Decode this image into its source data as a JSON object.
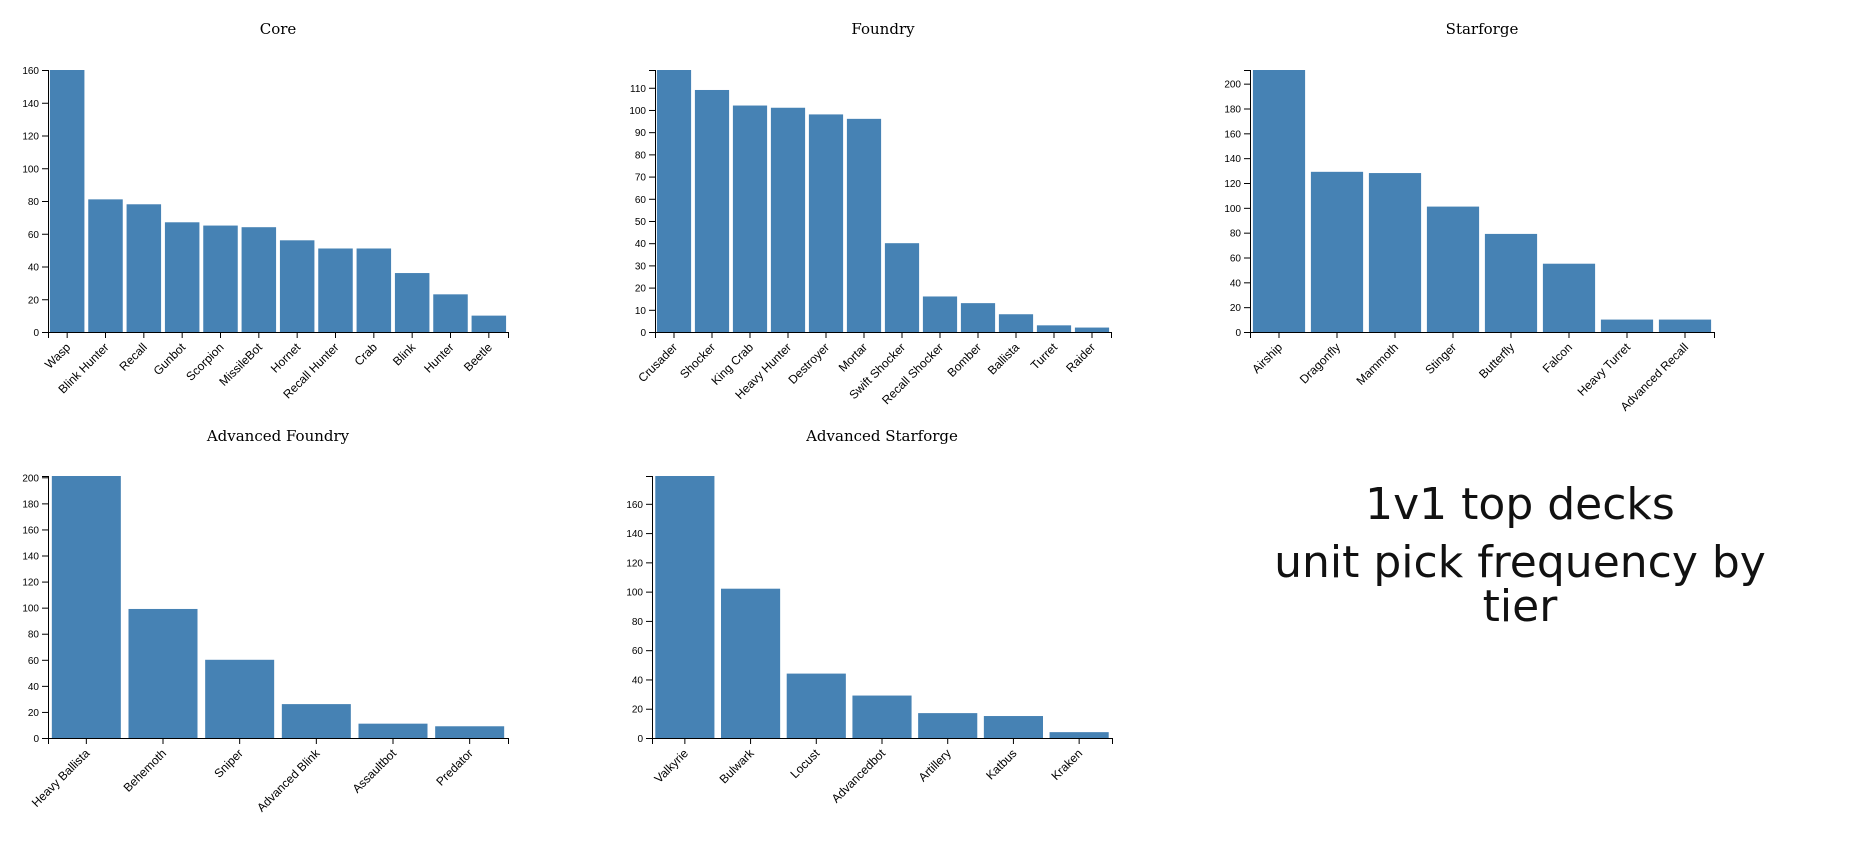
{
  "headline": {
    "line1": "1v1 top decks",
    "line2": "unit pick frequency by tier"
  },
  "style": {
    "bar_color": "#4682b4"
  },
  "chart_data": [
    {
      "type": "bar",
      "title": "Core",
      "categories": [
        "Wasp",
        "Blink Hunter",
        "Recall",
        "Gunbot",
        "Scorpion",
        "MissileBot",
        "Hornet",
        "Recall Hunter",
        "Crab",
        "Blink",
        "Hunter",
        "Beetle"
      ],
      "values": [
        160,
        81,
        78,
        67,
        65,
        64,
        56,
        51,
        51,
        36,
        23,
        10
      ],
      "ylim": [
        0,
        160
      ],
      "yticks": [
        0,
        20,
        40,
        60,
        80,
        100,
        120,
        140,
        160
      ],
      "xlabel": "",
      "ylabel": ""
    },
    {
      "type": "bar",
      "title": "Foundry",
      "categories": [
        "Crusader",
        "Shocker",
        "King Crab",
        "Heavy Hunter",
        "Destroyer",
        "Mortar",
        "Swift Shocker",
        "Recall Shocker",
        "Bomber",
        "Ballista",
        "Turret",
        "Raider"
      ],
      "values": [
        118,
        109,
        102,
        101,
        98,
        96,
        40,
        16,
        13,
        8,
        3,
        2
      ],
      "ylim": [
        0,
        118
      ],
      "yticks": [
        0,
        10,
        20,
        30,
        40,
        50,
        60,
        70,
        80,
        90,
        100,
        110
      ],
      "xlabel": "",
      "ylabel": ""
    },
    {
      "type": "bar",
      "title": "Starforge",
      "categories": [
        "Airship",
        "Dragonfly",
        "Mammoth",
        "Stinger",
        "Butterfly",
        "Falcon",
        "Heavy Turret",
        "Advanced Recall"
      ],
      "values": [
        211,
        129,
        128,
        101,
        79,
        55,
        10,
        10
      ],
      "ylim": [
        0,
        211
      ],
      "yticks": [
        0,
        20,
        40,
        60,
        80,
        100,
        120,
        140,
        160,
        180,
        200
      ],
      "xlabel": "",
      "ylabel": ""
    },
    {
      "type": "bar",
      "title": "Advanced Foundry",
      "categories": [
        "Heavy Ballista",
        "Behemoth",
        "Sniper",
        "Advanced Blink",
        "Assaultbot",
        "Predator"
      ],
      "values": [
        201,
        99,
        60,
        26,
        11,
        9
      ],
      "ylim": [
        0,
        201
      ],
      "yticks": [
        0,
        20,
        40,
        60,
        80,
        100,
        120,
        140,
        160,
        180,
        200
      ],
      "xlabel": "",
      "ylabel": ""
    },
    {
      "type": "bar",
      "title": "Advanced Starforge",
      "categories": [
        "Valkyrie",
        "Bulwark",
        "Locust",
        "Advancedbot",
        "Artillery",
        "Katbus",
        "Kraken"
      ],
      "values": [
        179,
        102,
        44,
        29,
        17,
        15,
        4
      ],
      "ylim": [
        0,
        179
      ],
      "yticks": [
        0,
        20,
        40,
        60,
        80,
        100,
        120,
        140,
        160
      ],
      "xlabel": "",
      "ylabel": ""
    }
  ]
}
